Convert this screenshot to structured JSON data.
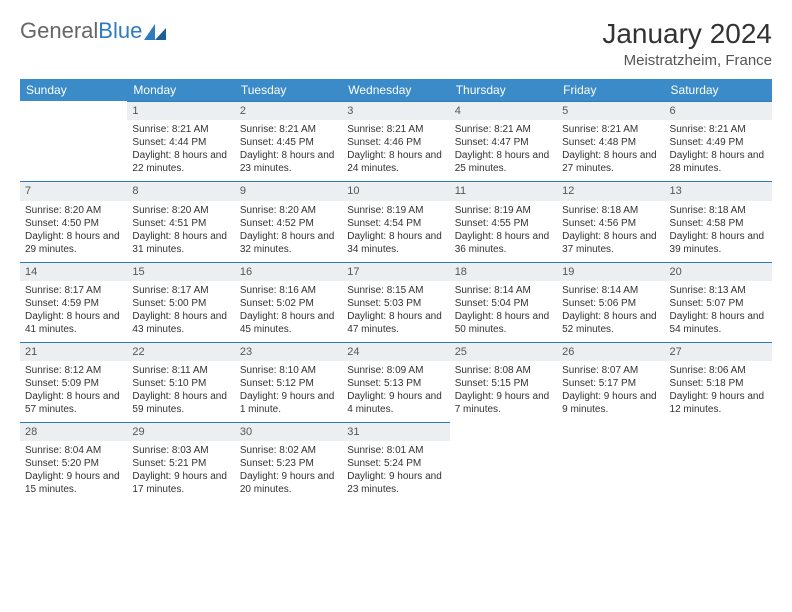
{
  "logo": {
    "text1": "General",
    "text2": "Blue"
  },
  "title": "January 2024",
  "location": "Meistratzheim, France",
  "colors": {
    "header_bg": "#3b8bc8",
    "header_text": "#ffffff",
    "daynum_bg": "#eceff1",
    "border": "#2f7bbf",
    "text": "#333333",
    "logo_accent": "#2f7bbf"
  },
  "day_headers": [
    "Sunday",
    "Monday",
    "Tuesday",
    "Wednesday",
    "Thursday",
    "Friday",
    "Saturday"
  ],
  "weeks": [
    [
      null,
      {
        "n": "1",
        "sunrise": "8:21 AM",
        "sunset": "4:44 PM",
        "dl": "8 hours and 22 minutes."
      },
      {
        "n": "2",
        "sunrise": "8:21 AM",
        "sunset": "4:45 PM",
        "dl": "8 hours and 23 minutes."
      },
      {
        "n": "3",
        "sunrise": "8:21 AM",
        "sunset": "4:46 PM",
        "dl": "8 hours and 24 minutes."
      },
      {
        "n": "4",
        "sunrise": "8:21 AM",
        "sunset": "4:47 PM",
        "dl": "8 hours and 25 minutes."
      },
      {
        "n": "5",
        "sunrise": "8:21 AM",
        "sunset": "4:48 PM",
        "dl": "8 hours and 27 minutes."
      },
      {
        "n": "6",
        "sunrise": "8:21 AM",
        "sunset": "4:49 PM",
        "dl": "8 hours and 28 minutes."
      }
    ],
    [
      {
        "n": "7",
        "sunrise": "8:20 AM",
        "sunset": "4:50 PM",
        "dl": "8 hours and 29 minutes."
      },
      {
        "n": "8",
        "sunrise": "8:20 AM",
        "sunset": "4:51 PM",
        "dl": "8 hours and 31 minutes."
      },
      {
        "n": "9",
        "sunrise": "8:20 AM",
        "sunset": "4:52 PM",
        "dl": "8 hours and 32 minutes."
      },
      {
        "n": "10",
        "sunrise": "8:19 AM",
        "sunset": "4:54 PM",
        "dl": "8 hours and 34 minutes."
      },
      {
        "n": "11",
        "sunrise": "8:19 AM",
        "sunset": "4:55 PM",
        "dl": "8 hours and 36 minutes."
      },
      {
        "n": "12",
        "sunrise": "8:18 AM",
        "sunset": "4:56 PM",
        "dl": "8 hours and 37 minutes."
      },
      {
        "n": "13",
        "sunrise": "8:18 AM",
        "sunset": "4:58 PM",
        "dl": "8 hours and 39 minutes."
      }
    ],
    [
      {
        "n": "14",
        "sunrise": "8:17 AM",
        "sunset": "4:59 PM",
        "dl": "8 hours and 41 minutes."
      },
      {
        "n": "15",
        "sunrise": "8:17 AM",
        "sunset": "5:00 PM",
        "dl": "8 hours and 43 minutes."
      },
      {
        "n": "16",
        "sunrise": "8:16 AM",
        "sunset": "5:02 PM",
        "dl": "8 hours and 45 minutes."
      },
      {
        "n": "17",
        "sunrise": "8:15 AM",
        "sunset": "5:03 PM",
        "dl": "8 hours and 47 minutes."
      },
      {
        "n": "18",
        "sunrise": "8:14 AM",
        "sunset": "5:04 PM",
        "dl": "8 hours and 50 minutes."
      },
      {
        "n": "19",
        "sunrise": "8:14 AM",
        "sunset": "5:06 PM",
        "dl": "8 hours and 52 minutes."
      },
      {
        "n": "20",
        "sunrise": "8:13 AM",
        "sunset": "5:07 PM",
        "dl": "8 hours and 54 minutes."
      }
    ],
    [
      {
        "n": "21",
        "sunrise": "8:12 AM",
        "sunset": "5:09 PM",
        "dl": "8 hours and 57 minutes."
      },
      {
        "n": "22",
        "sunrise": "8:11 AM",
        "sunset": "5:10 PM",
        "dl": "8 hours and 59 minutes."
      },
      {
        "n": "23",
        "sunrise": "8:10 AM",
        "sunset": "5:12 PM",
        "dl": "9 hours and 1 minute."
      },
      {
        "n": "24",
        "sunrise": "8:09 AM",
        "sunset": "5:13 PM",
        "dl": "9 hours and 4 minutes."
      },
      {
        "n": "25",
        "sunrise": "8:08 AM",
        "sunset": "5:15 PM",
        "dl": "9 hours and 7 minutes."
      },
      {
        "n": "26",
        "sunrise": "8:07 AM",
        "sunset": "5:17 PM",
        "dl": "9 hours and 9 minutes."
      },
      {
        "n": "27",
        "sunrise": "8:06 AM",
        "sunset": "5:18 PM",
        "dl": "9 hours and 12 minutes."
      }
    ],
    [
      {
        "n": "28",
        "sunrise": "8:04 AM",
        "sunset": "5:20 PM",
        "dl": "9 hours and 15 minutes."
      },
      {
        "n": "29",
        "sunrise": "8:03 AM",
        "sunset": "5:21 PM",
        "dl": "9 hours and 17 minutes."
      },
      {
        "n": "30",
        "sunrise": "8:02 AM",
        "sunset": "5:23 PM",
        "dl": "9 hours and 20 minutes."
      },
      {
        "n": "31",
        "sunrise": "8:01 AM",
        "sunset": "5:24 PM",
        "dl": "9 hours and 23 minutes."
      },
      null,
      null,
      null
    ]
  ],
  "labels": {
    "sunrise": "Sunrise:",
    "sunset": "Sunset:",
    "daylight": "Daylight:"
  }
}
